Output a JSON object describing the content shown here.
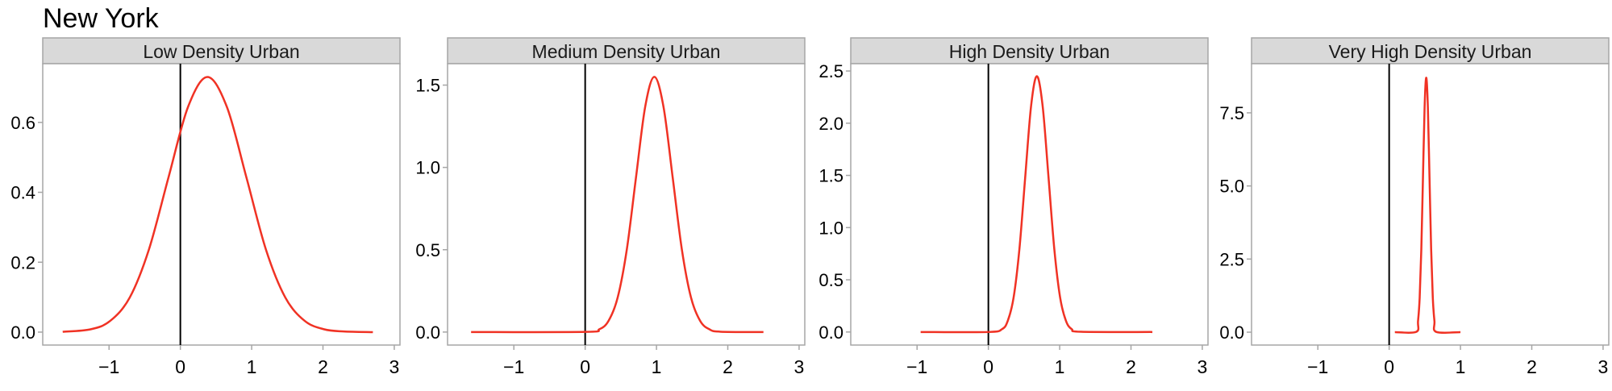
{
  "title": "New York",
  "colors": {
    "curve": "#f03224",
    "strip_bg": "#d9d9d9",
    "zero_line": "#000000",
    "frame": "#a6a6a6"
  },
  "chart_data": [
    {
      "type": "line",
      "strip": "Low Density Urban",
      "xlim": [
        -1.93,
        3.08
      ],
      "ylim": [
        -0.037,
        0.768
      ],
      "xticks": [
        -1,
        0,
        1,
        2,
        3
      ],
      "xtick_labels": [
        "−1",
        "0",
        "1",
        "2",
        "3"
      ],
      "yticks": [
        0,
        0.2,
        0.4,
        0.6
      ],
      "ytick_labels": [
        "0.0",
        "0.2",
        "0.4",
        "0.6"
      ],
      "vline": 0,
      "grid": false,
      "x": [
        -1.65,
        -1.26,
        -0.985,
        -0.71,
        -0.44,
        -0.166,
        0.107,
        0.38,
        0.653,
        0.926,
        1.199,
        1.472,
        1.745,
        2.018,
        2.29,
        2.7
      ],
      "y": [
        0.001,
        0.008,
        0.032,
        0.099,
        0.237,
        0.443,
        0.644,
        0.73,
        0.644,
        0.443,
        0.237,
        0.099,
        0.032,
        0.008,
        0.002,
        0.0
      ]
    },
    {
      "type": "line",
      "strip": "Medium Density Urban",
      "xlim": [
        -1.93,
        3.08
      ],
      "ylim": [
        -0.079,
        1.63
      ],
      "xticks": [
        -1,
        0,
        1,
        2,
        3
      ],
      "xtick_labels": [
        "−1",
        "0",
        "1",
        "2",
        "3"
      ],
      "yticks": [
        0,
        0.5,
        1.0,
        1.5
      ],
      "ytick_labels": [
        "0.0",
        "0.5",
        "1.0",
        "1.5"
      ],
      "vline": 0,
      "grid": false,
      "x": [
        -1.6,
        0.0,
        0.199,
        0.3275,
        0.456,
        0.5845,
        0.713,
        0.8415,
        0.97,
        1.0985,
        1.227,
        1.3555,
        1.484,
        1.6125,
        1.741,
        1.9,
        2.5
      ],
      "y": [
        0.0,
        0.001,
        0.017,
        0.068,
        0.21,
        0.503,
        0.94,
        1.368,
        1.55,
        1.368,
        0.94,
        0.503,
        0.21,
        0.068,
        0.017,
        0.002,
        0.0
      ]
    },
    {
      "type": "line",
      "strip": "High Density Urban",
      "xlim": [
        -1.93,
        3.08
      ],
      "ylim": [
        -0.125,
        2.57
      ],
      "xticks": [
        -1,
        0,
        1,
        2,
        3
      ],
      "xtick_labels": [
        "−1",
        "0",
        "1",
        "2",
        "3"
      ],
      "yticks": [
        0,
        0.5,
        1.0,
        1.5,
        2.0,
        2.5
      ],
      "ytick_labels": [
        "0.0",
        "0.5",
        "1.0",
        "1.5",
        "2.0",
        "2.5"
      ],
      "vline": 0,
      "grid": false,
      "x": [
        -0.95,
        0.0,
        0.191,
        0.2725,
        0.354,
        0.4355,
        0.517,
        0.5985,
        0.68,
        0.7615,
        0.843,
        0.9245,
        1.006,
        1.0875,
        1.169,
        1.3,
        2.3
      ],
      "y": [
        0.0,
        0.0,
        0.027,
        0.108,
        0.331,
        0.796,
        1.486,
        2.162,
        2.45,
        2.162,
        1.486,
        0.796,
        0.331,
        0.108,
        0.027,
        0.002,
        0.0
      ]
    },
    {
      "type": "line",
      "strip": "Very High Density Urban",
      "xlim": [
        -1.93,
        3.08
      ],
      "ylim": [
        -0.44,
        9.18
      ],
      "xticks": [
        -1,
        0,
        1,
        2,
        3
      ],
      "xtick_labels": [
        "−1",
        "0",
        "1",
        "2",
        "3"
      ],
      "yticks": [
        0,
        2.5,
        5.0,
        7.5
      ],
      "ytick_labels": [
        "0.0",
        "2.5",
        "5.0",
        "7.5"
      ],
      "vline": 0,
      "grid": false,
      "x": [
        0.08,
        0.38,
        0.405,
        0.428,
        0.451,
        0.474,
        0.497,
        0.52,
        0.543,
        0.566,
        0.589,
        0.612,
        0.635,
        0.66,
        1.0
      ],
      "y": [
        0.0,
        0.01,
        0.382,
        1.177,
        2.825,
        5.277,
        7.678,
        8.7,
        7.678,
        5.277,
        2.825,
        1.177,
        0.382,
        0.01,
        0.0
      ]
    }
  ]
}
